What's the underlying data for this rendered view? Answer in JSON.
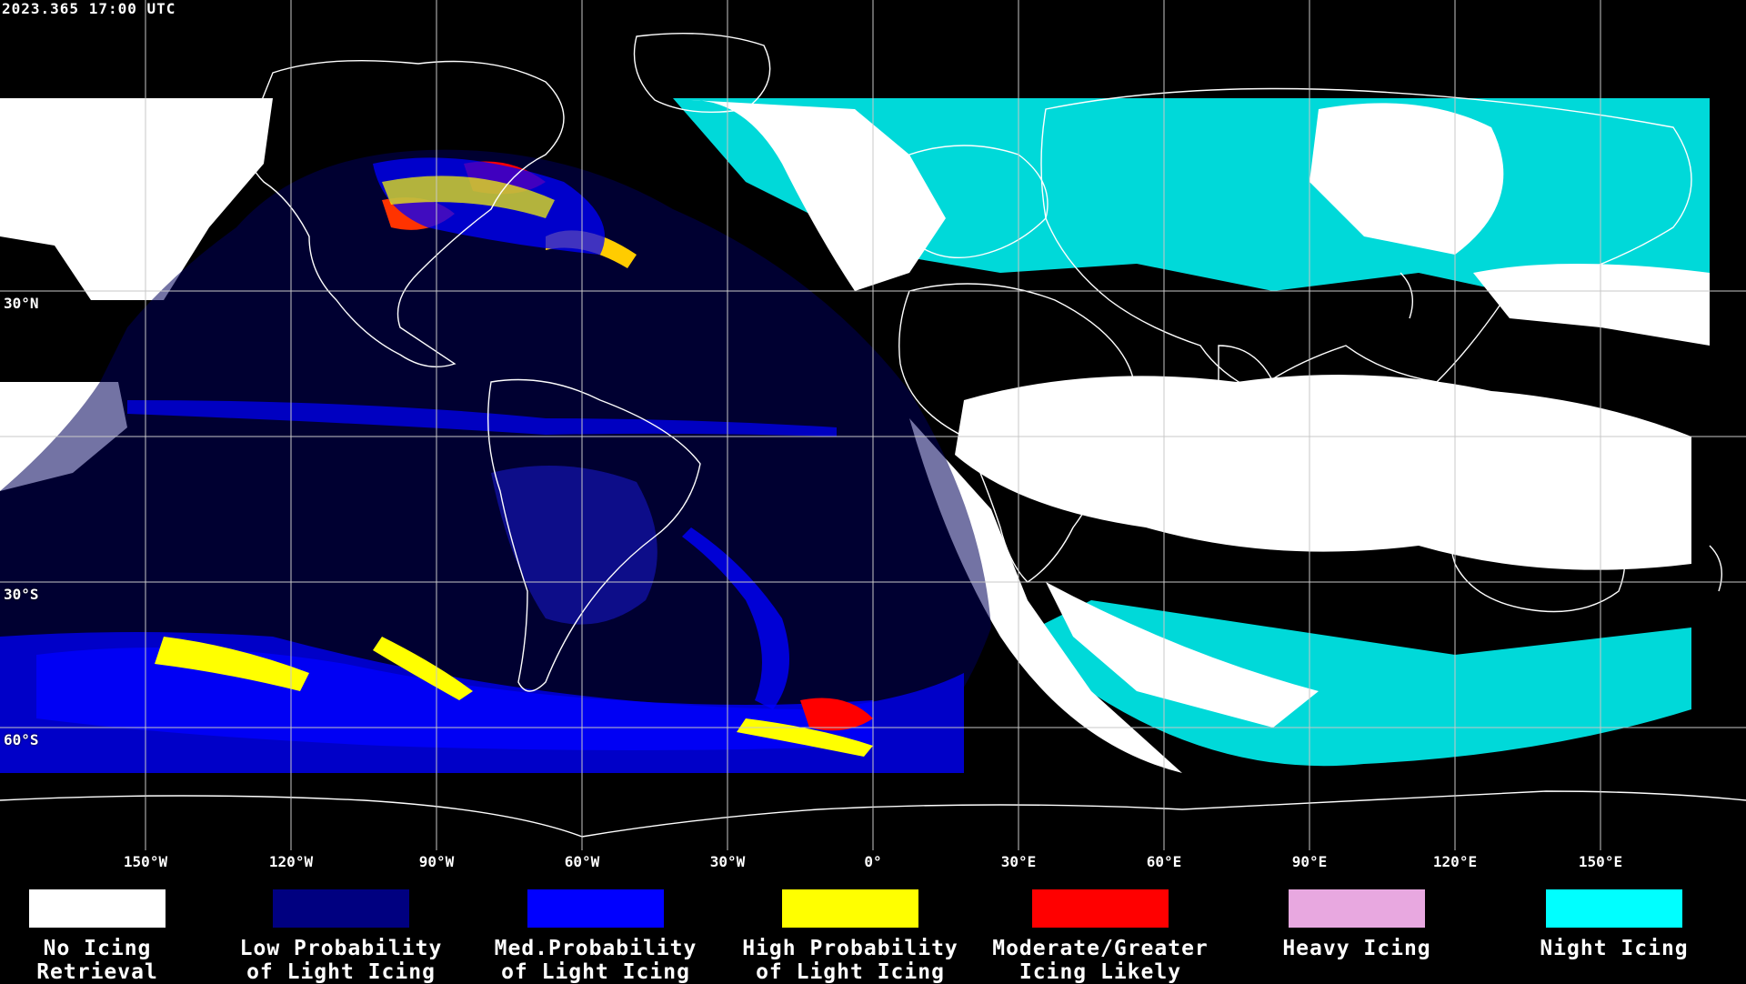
{
  "timestamp": "2023.365 17:00 UTC",
  "latitude_labels": [
    "30°N",
    "30°S",
    "60°S"
  ],
  "longitude_labels": [
    "150°W",
    "120°W",
    "90°W",
    "60°W",
    "30°W",
    "0°",
    "30°E",
    "60°E",
    "90°E",
    "120°E",
    "150°E"
  ],
  "legend": [
    {
      "label_line1": "No Icing",
      "label_line2": "Retrieval",
      "color": "#ffffff"
    },
    {
      "label_line1": "Low Probability",
      "label_line2": "of Light Icing",
      "color": "#000080"
    },
    {
      "label_line1": "Med.Probability",
      "label_line2": "of Light Icing",
      "color": "#0000ff"
    },
    {
      "label_line1": "High Probability",
      "label_line2": "of Light Icing",
      "color": "#ffff00"
    },
    {
      "label_line1": "Moderate/Greater",
      "label_line2": "Icing Likely",
      "color": "#ff0000"
    },
    {
      "label_line1": "Heavy Icing",
      "label_line2": "",
      "color": "#e8a8e0"
    },
    {
      "label_line1": "Night Icing",
      "label_line2": "",
      "color": "#00ffff"
    }
  ]
}
